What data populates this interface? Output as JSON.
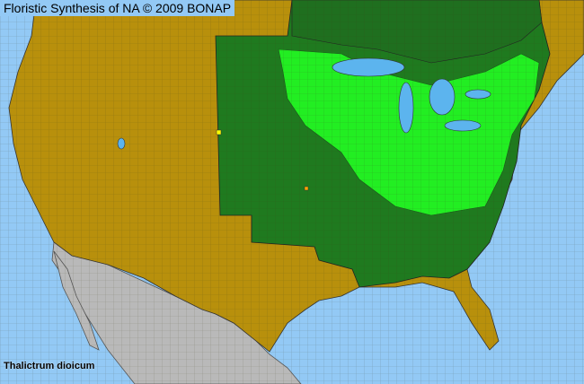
{
  "title": "Floristic Synthesis of NA © 2009 BONAP",
  "species": "Thalictrum dioicum",
  "colors": {
    "ocean": "#93c9f5",
    "lakes": "#5cb4ee",
    "absent_state": "#b8900c",
    "present_state": "#1f7a1f",
    "present_county": "#22ee22",
    "canada_present": "#1f6f1f",
    "mexico": "#b9b9b9",
    "rare_county": "#ffff00",
    "other_county": "#ffa500",
    "borders": "#333333"
  }
}
